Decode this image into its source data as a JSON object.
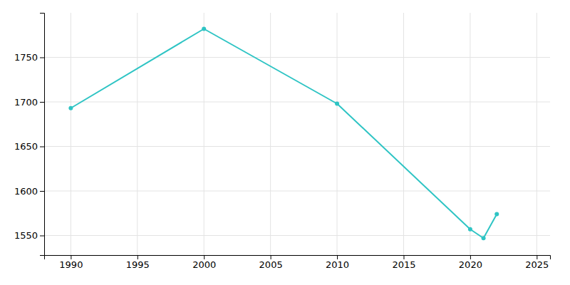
{
  "chart_data": {
    "type": "line",
    "x": [
      1990,
      2000,
      2010,
      2020,
      2021,
      2022
    ],
    "values": [
      1693,
      1782,
      1698,
      1557,
      1547,
      1574
    ],
    "color": "#2ec4c4",
    "marker": "circle",
    "xlim": [
      1988,
      2026
    ],
    "ylim": [
      1528,
      1800
    ],
    "xticks": [
      1990,
      1995,
      2000,
      2005,
      2010,
      2015,
      2020,
      2025
    ],
    "yticks": [
      1550,
      1600,
      1650,
      1700,
      1750
    ],
    "grid": true
  }
}
